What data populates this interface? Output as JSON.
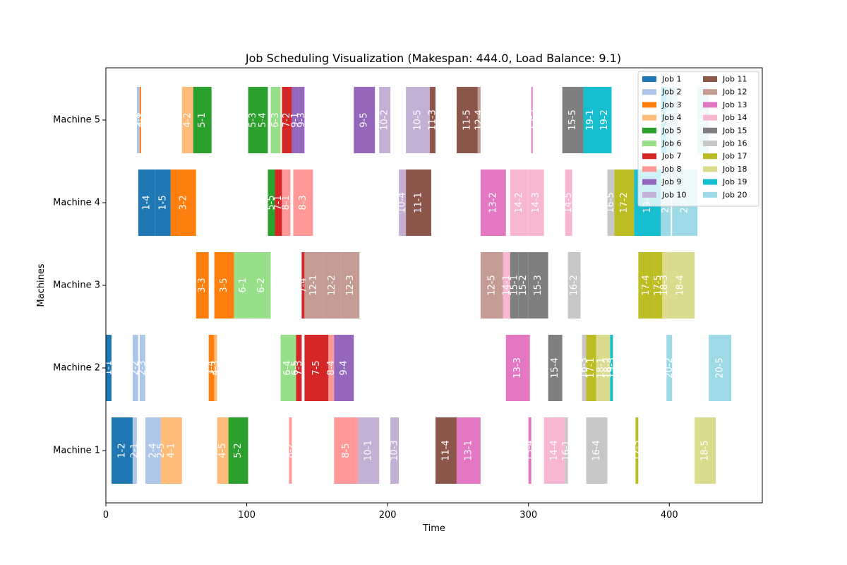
{
  "chart_data": {
    "type": "gantt",
    "title": "Job Scheduling Visualization (Makespan: 444.0, Load Balance: 9.1)",
    "xlabel": "Time",
    "ylabel": "Machines",
    "xlim": [
      0,
      466
    ],
    "xticks": [
      "0",
      "100",
      "200",
      "300",
      "400"
    ],
    "machines": [
      "Machine 1",
      "Machine 2",
      "Machine 3",
      "Machine 4",
      "Machine 5"
    ],
    "legend_position": "top-right",
    "jobs": [
      {
        "name": "Job 1",
        "color": "#1f77b4"
      },
      {
        "name": "Job 2",
        "color": "#aec7e8"
      },
      {
        "name": "Job 3",
        "color": "#ff7f0e"
      },
      {
        "name": "Job 4",
        "color": "#ffbb78"
      },
      {
        "name": "Job 5",
        "color": "#2ca02c"
      },
      {
        "name": "Job 6",
        "color": "#98df8a"
      },
      {
        "name": "Job 7",
        "color": "#d62728"
      },
      {
        "name": "Job 8",
        "color": "#ff9896"
      },
      {
        "name": "Job 9",
        "color": "#9467bd"
      },
      {
        "name": "Job 10",
        "color": "#c5b0d5"
      },
      {
        "name": "Job 11",
        "color": "#8c564b"
      },
      {
        "name": "Job 12",
        "color": "#c49c94"
      },
      {
        "name": "Job 13",
        "color": "#e377c2"
      },
      {
        "name": "Job 14",
        "color": "#f7b6d2"
      },
      {
        "name": "Job 15",
        "color": "#7f7f7f"
      },
      {
        "name": "Job 16",
        "color": "#c7c7c7"
      },
      {
        "name": "Job 17",
        "color": "#bcbd22"
      },
      {
        "name": "Job 18",
        "color": "#dbdb8d"
      },
      {
        "name": "Job 19",
        "color": "#17becf"
      },
      {
        "name": "Job 20",
        "color": "#9edae5"
      }
    ],
    "tasks": [
      {
        "machine": 1,
        "job": 1,
        "label": "1-2",
        "start": 4,
        "end": 19
      },
      {
        "machine": 1,
        "job": 2,
        "label": "2-1",
        "start": 19,
        "end": 22
      },
      {
        "machine": 1,
        "job": 2,
        "label": "2-4",
        "start": 28,
        "end": 39
      },
      {
        "machine": 1,
        "job": 2,
        "label": "2-5",
        "start": 39,
        "end": 39.5
      },
      {
        "machine": 1,
        "job": 4,
        "label": "4-1",
        "start": 39,
        "end": 54
      },
      {
        "machine": 1,
        "job": 4,
        "label": "4-5",
        "start": 79,
        "end": 87
      },
      {
        "machine": 1,
        "job": 5,
        "label": "5-2",
        "start": 87,
        "end": 101
      },
      {
        "machine": 1,
        "job": 8,
        "label": "8-2",
        "start": 130,
        "end": 132
      },
      {
        "machine": 1,
        "job": 8,
        "label": "8-5",
        "start": 162,
        "end": 179
      },
      {
        "machine": 1,
        "job": 10,
        "label": "10-1",
        "start": 179,
        "end": 194
      },
      {
        "machine": 1,
        "job": 10,
        "label": "10-3",
        "start": 202,
        "end": 208
      },
      {
        "machine": 1,
        "job": 11,
        "label": "11-4",
        "start": 234,
        "end": 249
      },
      {
        "machine": 1,
        "job": 13,
        "label": "13-1",
        "start": 249,
        "end": 266
      },
      {
        "machine": 1,
        "job": 13,
        "label": "13-4",
        "start": 300,
        "end": 302
      },
      {
        "machine": 1,
        "job": 14,
        "label": "14-4",
        "start": 311,
        "end": 326
      },
      {
        "machine": 1,
        "job": 16,
        "label": "16-1",
        "start": 326,
        "end": 328
      },
      {
        "machine": 1,
        "job": 16,
        "label": "16-4",
        "start": 341,
        "end": 356
      },
      {
        "machine": 1,
        "job": 17,
        "label": "17-3",
        "start": 376,
        "end": 378
      },
      {
        "machine": 1,
        "job": 18,
        "label": "18-5",
        "start": 418,
        "end": 433
      },
      {
        "machine": 2,
        "job": 1,
        "label": "1-1",
        "start": 0,
        "end": 4
      },
      {
        "machine": 2,
        "job": 2,
        "label": "2-2",
        "start": 19,
        "end": 23
      },
      {
        "machine": 2,
        "job": 2,
        "label": "2-3",
        "start": 24,
        "end": 28
      },
      {
        "machine": 2,
        "job": 3,
        "label": "3-4",
        "start": 73,
        "end": 77
      },
      {
        "machine": 2,
        "job": 4,
        "label": "4-3",
        "start": 77,
        "end": 79
      },
      {
        "machine": 2,
        "job": 6,
        "label": "6-4",
        "start": 124,
        "end": 134
      },
      {
        "machine": 2,
        "job": 6,
        "label": "6-5",
        "start": 134,
        "end": 135
      },
      {
        "machine": 2,
        "job": 7,
        "label": "7-3",
        "start": 135,
        "end": 139
      },
      {
        "machine": 2,
        "job": 7,
        "label": "7-5",
        "start": 141,
        "end": 158
      },
      {
        "machine": 2,
        "job": 8,
        "label": "8-4",
        "start": 158,
        "end": 162
      },
      {
        "machine": 2,
        "job": 9,
        "label": "9-4",
        "start": 162,
        "end": 176
      },
      {
        "machine": 2,
        "job": 13,
        "label": "13-3",
        "start": 284,
        "end": 301
      },
      {
        "machine": 2,
        "job": 15,
        "label": "15-4",
        "start": 314,
        "end": 324
      },
      {
        "machine": 2,
        "job": 16,
        "label": "16-3",
        "start": 338,
        "end": 341
      },
      {
        "machine": 2,
        "job": 17,
        "label": "17-1",
        "start": 341,
        "end": 348
      },
      {
        "machine": 2,
        "job": 18,
        "label": "18-1",
        "start": 348,
        "end": 355
      },
      {
        "machine": 2,
        "job": 18,
        "label": "18-2",
        "start": 355,
        "end": 358
      },
      {
        "machine": 2,
        "job": 19,
        "label": "19-3",
        "start": 358,
        "end": 360
      },
      {
        "machine": 2,
        "job": 20,
        "label": "20-2",
        "start": 398,
        "end": 402
      },
      {
        "machine": 2,
        "job": 20,
        "label": "20-5",
        "start": 428,
        "end": 444
      },
      {
        "machine": 3,
        "job": 3,
        "label": "3-3",
        "start": 64,
        "end": 73
      },
      {
        "machine": 3,
        "job": 3,
        "label": "3-5",
        "start": 77,
        "end": 91
      },
      {
        "machine": 3,
        "job": 6,
        "label": "6-1",
        "start": 91,
        "end": 104
      },
      {
        "machine": 3,
        "job": 6,
        "label": "6-2",
        "start": 104,
        "end": 117
      },
      {
        "machine": 3,
        "job": 7,
        "label": "7-4",
        "start": 139,
        "end": 141
      },
      {
        "machine": 3,
        "job": 12,
        "label": "12-1",
        "start": 141,
        "end": 154
      },
      {
        "machine": 3,
        "job": 12,
        "label": "12-2",
        "start": 154,
        "end": 167
      },
      {
        "machine": 3,
        "job": 12,
        "label": "12-3",
        "start": 167,
        "end": 180
      },
      {
        "machine": 3,
        "job": 12,
        "label": "12-5",
        "start": 266,
        "end": 282
      },
      {
        "machine": 3,
        "job": 14,
        "label": "14-1",
        "start": 282,
        "end": 287
      },
      {
        "machine": 3,
        "job": 15,
        "label": "15-1",
        "start": 287,
        "end": 293
      },
      {
        "machine": 3,
        "job": 15,
        "label": "15-2",
        "start": 293,
        "end": 300
      },
      {
        "machine": 3,
        "job": 15,
        "label": "15-3",
        "start": 300,
        "end": 314
      },
      {
        "machine": 3,
        "job": 16,
        "label": "16-2",
        "start": 328,
        "end": 337
      },
      {
        "machine": 3,
        "job": 17,
        "label": "17-4",
        "start": 378,
        "end": 389
      },
      {
        "machine": 3,
        "job": 17,
        "label": "17-5",
        "start": 389,
        "end": 395
      },
      {
        "machine": 3,
        "job": 18,
        "label": "18-3",
        "start": 395,
        "end": 398
      },
      {
        "machine": 3,
        "job": 18,
        "label": "18-4",
        "start": 398,
        "end": 418
      },
      {
        "machine": 4,
        "job": 1,
        "label": "1-4",
        "start": 23,
        "end": 35
      },
      {
        "machine": 4,
        "job": 1,
        "label": "1-5",
        "start": 35,
        "end": 46
      },
      {
        "machine": 4,
        "job": 3,
        "label": "3-2",
        "start": 46,
        "end": 64
      },
      {
        "machine": 4,
        "job": 5,
        "label": "5-5",
        "start": 115,
        "end": 120
      },
      {
        "machine": 4,
        "job": 7,
        "label": "7-1",
        "start": 120,
        "end": 125
      },
      {
        "machine": 4,
        "job": 8,
        "label": "8-1",
        "start": 125,
        "end": 131
      },
      {
        "machine": 4,
        "job": 8,
        "label": "8-3",
        "start": 133,
        "end": 147
      },
      {
        "machine": 4,
        "job": 10,
        "label": "10-4",
        "start": 208,
        "end": 213
      },
      {
        "machine": 4,
        "job": 11,
        "label": "11-1",
        "start": 213,
        "end": 231
      },
      {
        "machine": 4,
        "job": 13,
        "label": "13-2",
        "start": 266,
        "end": 284
      },
      {
        "machine": 4,
        "job": 14,
        "label": "14-2",
        "start": 287,
        "end": 300
      },
      {
        "machine": 4,
        "job": 14,
        "label": "14-3",
        "start": 300,
        "end": 311
      },
      {
        "machine": 4,
        "job": 14,
        "label": "14-5",
        "start": 326,
        "end": 331
      },
      {
        "machine": 4,
        "job": 16,
        "label": "16-5",
        "start": 356,
        "end": 361
      },
      {
        "machine": 4,
        "job": 17,
        "label": "17-2",
        "start": 361,
        "end": 375
      },
      {
        "machine": 4,
        "job": 19,
        "label": "19-4",
        "start": 375,
        "end": 394
      },
      {
        "machine": 4,
        "job": 20,
        "label": "20-3",
        "start": 394,
        "end": 401
      },
      {
        "machine": 4,
        "job": 20,
        "label": "20-4",
        "start": 402,
        "end": 420
      },
      {
        "machine": 5,
        "job": 2,
        "label": "2-6",
        "start": 22,
        "end": 24
      },
      {
        "machine": 5,
        "job": 3,
        "label": "3-1",
        "start": 24,
        "end": 25
      },
      {
        "machine": 5,
        "job": 4,
        "label": "4-2",
        "start": 54,
        "end": 62
      },
      {
        "machine": 5,
        "job": 5,
        "label": "5-1",
        "start": 62,
        "end": 75
      },
      {
        "machine": 5,
        "job": 5,
        "label": "5-3",
        "start": 101,
        "end": 108
      },
      {
        "machine": 5,
        "job": 5,
        "label": "5-4",
        "start": 108,
        "end": 115
      },
      {
        "machine": 5,
        "job": 6,
        "label": "6-3",
        "start": 117,
        "end": 124
      },
      {
        "machine": 5,
        "job": 7,
        "label": "7-2",
        "start": 125,
        "end": 132
      },
      {
        "machine": 5,
        "job": 9,
        "label": "9-1",
        "start": 132,
        "end": 137
      },
      {
        "machine": 5,
        "job": 9,
        "label": "9-3",
        "start": 137,
        "end": 141
      },
      {
        "machine": 5,
        "job": 9,
        "label": "9-5",
        "start": 176,
        "end": 191
      },
      {
        "machine": 5,
        "job": 10,
        "label": "10-2",
        "start": 194,
        "end": 202
      },
      {
        "machine": 5,
        "job": 10,
        "label": "10-5",
        "start": 213,
        "end": 230
      },
      {
        "machine": 5,
        "job": 11,
        "label": "11-3",
        "start": 230,
        "end": 234
      },
      {
        "machine": 5,
        "job": 11,
        "label": "11-5",
        "start": 249,
        "end": 264
      },
      {
        "machine": 5,
        "job": 12,
        "label": "12-4",
        "start": 264,
        "end": 266
      },
      {
        "machine": 5,
        "job": 13,
        "label": "13-5",
        "start": 302,
        "end": 303
      },
      {
        "machine": 5,
        "job": 15,
        "label": "15-5",
        "start": 324,
        "end": 339
      },
      {
        "machine": 5,
        "job": 19,
        "label": "19-1",
        "start": 339,
        "end": 349
      },
      {
        "machine": 5,
        "job": 19,
        "label": "19-2",
        "start": 349,
        "end": 359
      },
      {
        "machine": 5,
        "job": 19,
        "label": "19-5",
        "start": 394,
        "end": 398
      },
      {
        "machine": 5,
        "job": 20,
        "label": "20-1",
        "start": 398,
        "end": 406
      },
      {
        "machine": 5,
        "job": 20,
        "label": "20-6",
        "start": 420,
        "end": 428
      }
    ]
  }
}
